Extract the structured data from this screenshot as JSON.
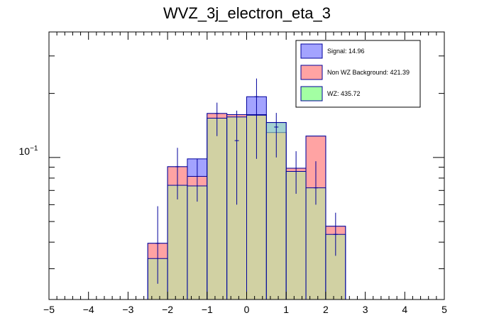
{
  "chart_data": {
    "type": "bar",
    "title": "WVZ_3j_electron_eta_3",
    "xlim": [
      -5,
      5
    ],
    "x_ticks": [
      "−5",
      "−4",
      "−3",
      "−2",
      "−1",
      "0",
      "1",
      "2",
      "3",
      "4",
      "5"
    ],
    "yscale": "log",
    "y_tick_label": "10",
    "y_tick_exponent": "−1",
    "grid": false,
    "legend_position": "top-right",
    "bin_edges": [
      -2.5,
      -2.0,
      -1.5,
      -1.0,
      -0.5,
      0.0,
      0.5,
      1.0,
      1.5,
      2.0,
      2.5
    ],
    "series": [
      {
        "name": "Signal: 14.96",
        "color": "#a3a3ff",
        "line_color": "#00009c",
        "values": [
          0.0395,
          0.0905,
          0.0985,
          0.161,
          0.159,
          0.193,
          0.146,
          0.089,
          0.126,
          0.0475
        ]
      },
      {
        "name": "Non WZ Background: 421.39",
        "color": "#ffa3a3",
        "line_color": "#00009c",
        "values": [
          0.0395,
          0.0905,
          0.0815,
          0.161,
          0.159,
          0.159,
          0.131,
          0.089,
          0.126,
          0.0475
        ]
      },
      {
        "name": "WZ: 435.72",
        "color": "#a3ffa3",
        "line_color": "#00009c",
        "values": [
          0.0335,
          0.074,
          0.0735,
          0.153,
          0.155,
          0.158,
          0.146,
          0.086,
          0.072,
          0.0435
        ]
      }
    ],
    "error_bars": [
      {
        "center": 0.0395,
        "low": 0.0255,
        "high": 0.059
      },
      {
        "center": 0.0905,
        "low": 0.0635,
        "high": 0.111
      },
      {
        "center": 0.0815,
        "low": 0.062,
        "high": 0.0985
      },
      {
        "center": 0.161,
        "low": 0.126,
        "high": 0.181
      },
      {
        "center": 0.12,
        "low": 0.06,
        "high": 0.166
      },
      {
        "center": 0.193,
        "low": 0.0985,
        "high": 0.235
      },
      {
        "center": 0.139,
        "low": 0.1,
        "high": 0.162
      },
      {
        "center": 0.089,
        "low": 0.0675,
        "high": 0.107
      },
      {
        "center": 0.072,
        "low": 0.06,
        "high": 0.096
      },
      {
        "center": 0.0435,
        "low": 0.0345,
        "high": 0.055
      }
    ]
  }
}
